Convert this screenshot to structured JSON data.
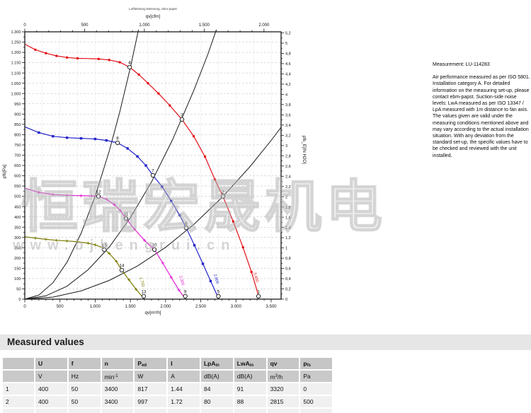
{
  "doc": {
    "top_note": "Luftleistung Messung, ebm-papst"
  },
  "watermark": {
    "cn_text": "恒瑞宏晟机电",
    "url_text": "www.bjhengrui.cn"
  },
  "side_panel": {
    "measurement": "Measurement: LU-114283",
    "body": "Air performance measured as per ISO 5801. Installation category A. For detailed information on the measuring set-up, please contact ebm-papst. Suction-side noise levels: LwA measured as per ISO 13347 / LpA measured with 1m distance to fan axis. The values given are valid under the measuring conditions mentioned above and may vary according to the actual installation situation. With any deviation from the standard set-up, the specific values have to be checked and reviewed with the unit installed."
  },
  "measured_values": {
    "title": "Measured values",
    "headers": [
      "",
      "U",
      "f",
      "n",
      "P~ed~",
      "I",
      "LpA~in~",
      "LwA~in~",
      "qv",
      "p~fs~"
    ],
    "units": [
      "",
      "V",
      "Hz",
      "min^-1^",
      "W",
      "A",
      "dB(A)",
      "dB(A)",
      "m^3^/h",
      "Pa"
    ],
    "rows": [
      [
        "1",
        "400",
        "50",
        "3400",
        "817",
        "1.44",
        "84",
        "91",
        "3320",
        "0"
      ],
      [
        "2",
        "400",
        "50",
        "3400",
        "997",
        "1.72",
        "80",
        "88",
        "2815",
        "500"
      ]
    ],
    "partial_third_row": true
  },
  "chart_data": {
    "type": "line",
    "title": "Luftleistung Messung, ebm-papst",
    "axes": {
      "bottom": {
        "label": "qv[m³/h]",
        "min": 0,
        "max": 3641,
        "major_step": 500,
        "minor_step": 100,
        "last_major": 3500
      },
      "top": {
        "label": "qv[cfm]",
        "min": 0,
        "max": 2143,
        "major_step": 500,
        "minor_step": 100,
        "last_major": 2000
      },
      "left": {
        "label": "pfs[Pa]",
        "min": 0,
        "max": 1300,
        "major_step": 50,
        "minor_step": 25
      },
      "right": {
        "label": "pfs_E[IN H2O]",
        "min": 0,
        "max": 5.2,
        "major_step": 0.2,
        "minor_step": 0.1
      }
    },
    "grid": {
      "h_step_pa": 50,
      "v_step_qv": 250,
      "color": "#b5b5b5"
    },
    "series": [
      {
        "name": "fan-curve-3400",
        "color": "#e31017",
        "marker": "dot",
        "end_label": "3,400",
        "end_label_at": [
          3270,
          128
        ],
        "points": [
          [
            0,
            1240
          ],
          [
            150,
            1213
          ],
          [
            300,
            1196
          ],
          [
            450,
            1183
          ],
          [
            600,
            1175
          ],
          [
            750,
            1171
          ],
          [
            900,
            1170
          ],
          [
            1050,
            1168
          ],
          [
            1200,
            1163
          ],
          [
            1350,
            1152
          ],
          [
            1490,
            1128
          ],
          [
            1620,
            1092
          ],
          [
            1750,
            1050
          ],
          [
            1900,
            1000
          ],
          [
            2060,
            942
          ],
          [
            2233,
            874
          ],
          [
            2400,
            792
          ],
          [
            2560,
            693
          ],
          [
            2700,
            582
          ],
          [
            2815,
            500
          ],
          [
            2960,
            378
          ],
          [
            3100,
            252
          ],
          [
            3220,
            132
          ],
          [
            3330,
            5
          ]
        ],
        "markers": [
          [
            150,
            1213
          ],
          [
            300,
            1196
          ],
          [
            450,
            1183
          ],
          [
            600,
            1175
          ],
          [
            750,
            1171
          ],
          [
            1050,
            1168
          ],
          [
            1200,
            1163
          ],
          [
            1350,
            1152
          ],
          [
            1620,
            1092
          ],
          [
            1750,
            1050
          ],
          [
            1900,
            1000
          ],
          [
            2060,
            942
          ],
          [
            2400,
            792
          ],
          [
            2560,
            693
          ],
          [
            2700,
            582
          ],
          [
            2960,
            378
          ],
          [
            3100,
            252
          ],
          [
            3220,
            132
          ]
        ]
      },
      {
        "name": "fan-curve-2800",
        "color": "#2323cc",
        "marker": "square",
        "end_label": "2,800",
        "end_label_at": [
          2705,
          120
        ],
        "points": [
          [
            0,
            838
          ],
          [
            200,
            810
          ],
          [
            400,
            792
          ],
          [
            600,
            785
          ],
          [
            800,
            782
          ],
          [
            1000,
            779
          ],
          [
            1160,
            772
          ],
          [
            1318,
            760
          ],
          [
            1460,
            733
          ],
          [
            1600,
            694
          ],
          [
            1720,
            650
          ],
          [
            1820,
            602
          ],
          [
            1950,
            547
          ],
          [
            2080,
            478
          ],
          [
            2200,
            408
          ],
          [
            2293,
            347
          ],
          [
            2410,
            262
          ],
          [
            2530,
            172
          ],
          [
            2640,
            88
          ],
          [
            2755,
            2
          ]
        ],
        "markers": [
          [
            200,
            810
          ],
          [
            400,
            792
          ],
          [
            600,
            785
          ],
          [
            800,
            782
          ],
          [
            1000,
            779
          ],
          [
            1160,
            772
          ],
          [
            1460,
            733
          ],
          [
            1600,
            694
          ],
          [
            1720,
            650
          ],
          [
            1950,
            547
          ],
          [
            2080,
            478
          ],
          [
            2200,
            408
          ],
          [
            2410,
            262
          ],
          [
            2530,
            172
          ],
          [
            2640,
            88
          ]
        ]
      },
      {
        "name": "fan-curve-2300",
        "color": "#e520d5",
        "marker": "plus",
        "end_label": "2,300",
        "end_label_at": [
          2215,
          112
        ],
        "points": [
          [
            0,
            540
          ],
          [
            200,
            519
          ],
          [
            400,
            509
          ],
          [
            600,
            505
          ],
          [
            800,
            503
          ],
          [
            950,
            502
          ],
          [
            1046,
            500
          ],
          [
            1160,
            486
          ],
          [
            1270,
            460
          ],
          [
            1360,
            430
          ],
          [
            1438,
            392
          ],
          [
            1560,
            340
          ],
          [
            1700,
            286
          ],
          [
            1841,
            241
          ],
          [
            1960,
            176
          ],
          [
            2080,
            106
          ],
          [
            2190,
            44
          ],
          [
            2280,
            2
          ]
        ],
        "markers": [
          [
            200,
            519
          ],
          [
            400,
            509
          ],
          [
            600,
            505
          ],
          [
            800,
            503
          ],
          [
            950,
            502
          ],
          [
            1160,
            486
          ],
          [
            1270,
            460
          ],
          [
            1360,
            430
          ],
          [
            1560,
            340
          ],
          [
            1700,
            286
          ],
          [
            1960,
            176
          ],
          [
            2080,
            106
          ],
          [
            2190,
            44
          ]
        ]
      },
      {
        "name": "fan-curve-1750",
        "color": "#7a7a00",
        "marker": "plus",
        "end_label": "1,750",
        "end_label_at": [
          1650,
          105
        ],
        "points": [
          [
            0,
            303
          ],
          [
            150,
            297
          ],
          [
            300,
            291
          ],
          [
            450,
            286
          ],
          [
            600,
            283
          ],
          [
            750,
            279
          ],
          [
            900,
            272
          ],
          [
            1000,
            264
          ],
          [
            1106,
            250
          ],
          [
            1200,
            222
          ],
          [
            1300,
            184
          ],
          [
            1378,
            141
          ],
          [
            1480,
            94
          ],
          [
            1580,
            48
          ],
          [
            1695,
            2
          ]
        ],
        "markers": [
          [
            150,
            297
          ],
          [
            300,
            291
          ],
          [
            450,
            286
          ],
          [
            600,
            283
          ],
          [
            750,
            279
          ],
          [
            900,
            272
          ],
          [
            1000,
            264
          ],
          [
            1200,
            222
          ],
          [
            1300,
            184
          ],
          [
            1480,
            94
          ],
          [
            1580,
            48
          ]
        ]
      }
    ],
    "system_curves": [
      {
        "name": "system-curve-1",
        "points": [
          [
            0,
            0
          ],
          [
            200,
            20
          ],
          [
            400,
            80
          ],
          [
            600,
            180
          ],
          [
            800,
            320
          ],
          [
            1000,
            500
          ],
          [
            1200,
            720
          ],
          [
            1350,
            911
          ],
          [
            1500,
            1125
          ],
          [
            1615,
            1310
          ]
        ]
      },
      {
        "name": "system-curve-2",
        "points": [
          [
            0,
            0
          ],
          [
            300,
            16
          ],
          [
            600,
            63
          ],
          [
            900,
            143
          ],
          [
            1200,
            253
          ],
          [
            1500,
            396
          ],
          [
            1800,
            570
          ],
          [
            2100,
            776
          ],
          [
            2400,
            1014
          ],
          [
            2600,
            1190
          ],
          [
            2722,
            1310
          ]
        ]
      },
      {
        "name": "system-curve-3",
        "points": [
          [
            0,
            0
          ],
          [
            400,
            10
          ],
          [
            800,
            40
          ],
          [
            1200,
            91
          ],
          [
            1600,
            161
          ],
          [
            2000,
            252
          ],
          [
            2400,
            363
          ],
          [
            2800,
            494
          ],
          [
            3200,
            645
          ],
          [
            3500,
            772
          ],
          [
            3640,
            835
          ]
        ]
      }
    ],
    "operating_points": [
      {
        "n": "1",
        "qv": 3320,
        "pfs": 14
      },
      {
        "n": "2",
        "qv": 2815,
        "pfs": 500
      },
      {
        "n": "3",
        "qv": 2233,
        "pfs": 874
      },
      {
        "n": "4",
        "qv": 1489,
        "pfs": 1128
      },
      {
        "n": "5",
        "qv": 2750,
        "pfs": 14
      },
      {
        "n": "6",
        "qv": 2293,
        "pfs": 347
      },
      {
        "n": "7",
        "qv": 1820,
        "pfs": 602
      },
      {
        "n": "8",
        "qv": 1318,
        "pfs": 760
      },
      {
        "n": "9",
        "qv": 2280,
        "pfs": 14
      },
      {
        "n": "10",
        "qv": 1841,
        "pfs": 241
      },
      {
        "n": "11",
        "qv": 1438,
        "pfs": 392
      },
      {
        "n": "12",
        "qv": 1046,
        "pfs": 500
      },
      {
        "n": "13",
        "qv": 1690,
        "pfs": 14
      },
      {
        "n": "14",
        "qv": 1378,
        "pfs": 141
      },
      {
        "n": "15",
        "qv": 1130,
        "pfs": 240
      }
    ]
  }
}
